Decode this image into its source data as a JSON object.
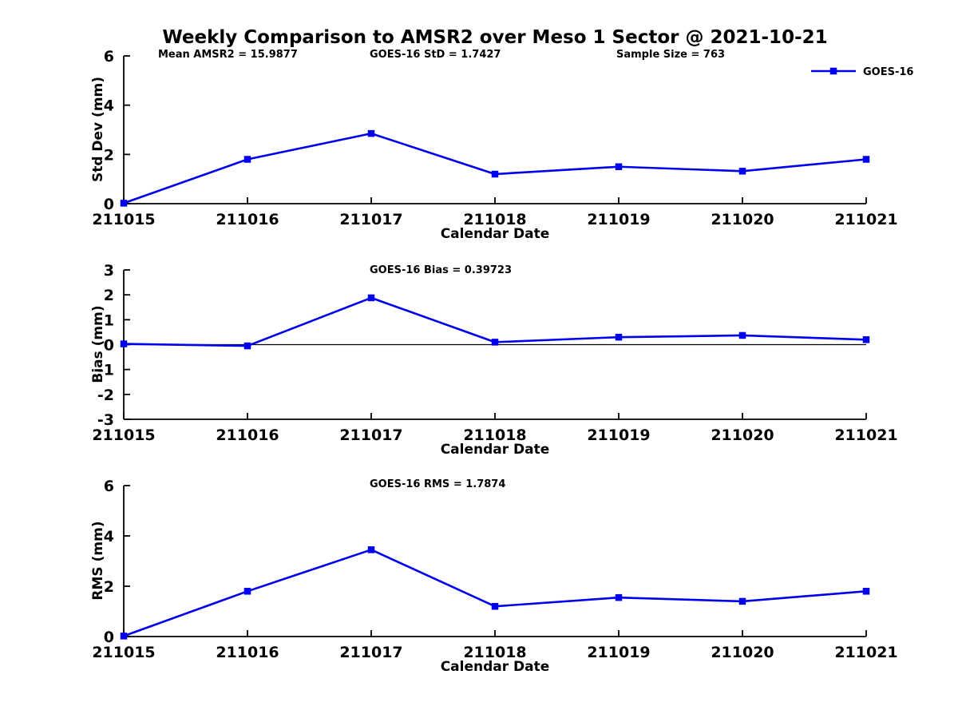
{
  "title": "Weekly Comparison to AMSR2 over Meso 1 Sector @ 2021-10-21",
  "annotations": {
    "mean_amsr2": "Mean AMSR2 = 15.9877",
    "goes16_std": "GOES-16 StD = 1.7427",
    "sample_size": "Sample Size = 763"
  },
  "legend": {
    "label": "GOES-16",
    "position": "top-right",
    "marker": "square"
  },
  "colors": {
    "series": "#0000EE",
    "axis": "#000000",
    "text": "#000000",
    "background": "#FFFFFF",
    "zero_line": "#000000"
  },
  "chart_data": [
    {
      "type": "line",
      "title": "",
      "xlabel": "Calendar Date",
      "ylabel": "Std Dev (mm)",
      "categories": [
        "211015",
        "211016",
        "211017",
        "211018",
        "211019",
        "211020",
        "211021"
      ],
      "series": [
        {
          "name": "GOES-16",
          "values": [
            0.02,
            1.8,
            2.85,
            1.2,
            1.5,
            1.32,
            1.8
          ]
        }
      ],
      "ylim": [
        0,
        6
      ],
      "yticks": [
        0,
        2,
        4,
        6
      ],
      "grid": false,
      "zero_line": false,
      "marker": "square",
      "legend_position": "top-right"
    },
    {
      "type": "line",
      "title": "GOES-16 Bias  = 0.39723",
      "xlabel": "Calendar Date",
      "ylabel": "Bias (mm)",
      "categories": [
        "211015",
        "211016",
        "211017",
        "211018",
        "211019",
        "211020",
        "211021"
      ],
      "series": [
        {
          "name": "GOES-16",
          "values": [
            0.03,
            -0.05,
            1.88,
            0.1,
            0.3,
            0.37,
            0.2
          ]
        }
      ],
      "ylim": [
        -3,
        3
      ],
      "yticks": [
        -3,
        -2,
        -1,
        0,
        1,
        2,
        3
      ],
      "grid": false,
      "zero_line": true,
      "marker": "square",
      "legend_position": "none"
    },
    {
      "type": "line",
      "title": "GOES-16 RMS = 1.7874",
      "xlabel": "Calendar Date",
      "ylabel": "RMS (mm)",
      "categories": [
        "211015",
        "211016",
        "211017",
        "211018",
        "211019",
        "211020",
        "211021"
      ],
      "series": [
        {
          "name": "GOES-16",
          "values": [
            0.02,
            1.8,
            3.45,
            1.2,
            1.55,
            1.4,
            1.8
          ]
        }
      ],
      "ylim": [
        0,
        6
      ],
      "yticks": [
        0,
        2,
        4,
        6
      ],
      "grid": false,
      "zero_line": false,
      "marker": "square",
      "legend_position": "none"
    }
  ]
}
